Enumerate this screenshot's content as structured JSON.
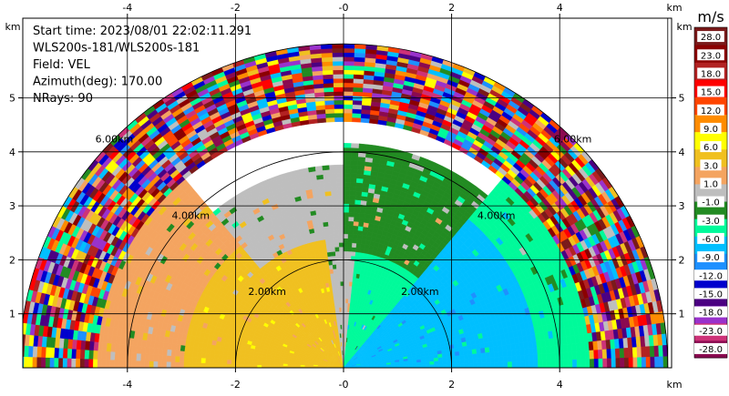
{
  "chart_data": {
    "type": "heatmap",
    "subtype": "radar-ppi-halfdisk",
    "info_lines": [
      "Start time: 2023/08/01 22:02:11.291",
      "WLS200s-181/WLS200s-181",
      "Field: VEL",
      "Azimuth(deg): 170.00",
      "NRays: 90"
    ],
    "x_unit": "km",
    "y_unit": "km",
    "xlim": [
      -6.0,
      6.0
    ],
    "ylim": [
      0.0,
      6.0
    ],
    "x_ticks": [
      -4,
      -2,
      0,
      2,
      4
    ],
    "x_tick_labels": [
      "-4",
      "-2",
      "-0",
      "2",
      "4"
    ],
    "y_ticks": [
      1,
      2,
      3,
      4,
      5
    ],
    "y_tick_labels": [
      "1",
      "2",
      "3",
      "4",
      "5"
    ],
    "range_rings": [
      {
        "r": 2,
        "label": "2.00km"
      },
      {
        "r": 4,
        "label": "4.00km"
      },
      {
        "r": 6,
        "label": "6.00km"
      }
    ],
    "grid": true,
    "field": "VEL",
    "colorbar": {
      "unit": "m/s",
      "levels": [
        -28,
        -23,
        -18,
        -15,
        -12,
        -9,
        -6,
        -3,
        -1,
        1,
        3,
        6,
        9,
        12,
        15,
        18,
        23,
        28
      ],
      "labels": [
        "-28.0",
        "-23.0",
        "-18.0",
        "-15.0",
        "-12.0",
        "-9.0",
        "-6.0",
        "-3.0",
        "-1.0",
        "1.0",
        "3.0",
        "6.0",
        "9.0",
        "12.0",
        "15.0",
        "18.0",
        "23.0",
        "28.0"
      ],
      "colors": [
        "#8b0a50",
        "#cd3278",
        "#9932cc",
        "#4b0082",
        "#0000cd",
        "#1e90ff",
        "#00bfff",
        "#00fa9a",
        "#228b22",
        "#bebebe",
        "#f4a460",
        "#f0c020",
        "#ffff00",
        "#ff8c00",
        "#ff4500",
        "#ff0000",
        "#b22222",
        "#8b0000",
        "#7a1a1a"
      ]
    },
    "regions": [
      {
        "name": "outer-noise",
        "r_min": 4.6,
        "r_max": 6.0,
        "az_min": -90,
        "az_max": 90,
        "class": "noise"
      },
      {
        "name": "near-left-yellow",
        "r_min": 0,
        "r_max": 3.0,
        "az_min": -90,
        "az_max": -8,
        "value": 4.5
      },
      {
        "name": "near-center-grey",
        "r_min": 0,
        "r_max": 2.4,
        "az_min": -8,
        "az_max": 6,
        "value": 0.0
      },
      {
        "name": "near-right-green",
        "r_min": 0,
        "r_max": 2.2,
        "az_min": 6,
        "az_max": 40,
        "value": -4.5
      },
      {
        "name": "near-right-blue",
        "r_min": 0,
        "r_max": 3.6,
        "az_min": 40,
        "az_max": 90,
        "value": -7.5
      },
      {
        "name": "mid-left-orange",
        "r_min": 3.0,
        "r_max": 4.6,
        "az_min": -90,
        "az_max": -40,
        "value": 2.0
      },
      {
        "name": "mid-grey",
        "r_min": 2.4,
        "r_max": 3.8,
        "az_min": -40,
        "az_max": 0,
        "value": 0.0
      },
      {
        "name": "mid-right-darkgreen",
        "r_min": 2.2,
        "r_max": 4.2,
        "az_min": 0,
        "az_max": 40,
        "value": -2.0
      },
      {
        "name": "mid-right-seagreen",
        "r_min": 3.6,
        "r_max": 4.6,
        "az_min": 40,
        "az_max": 90,
        "value": -4.5
      }
    ]
  }
}
